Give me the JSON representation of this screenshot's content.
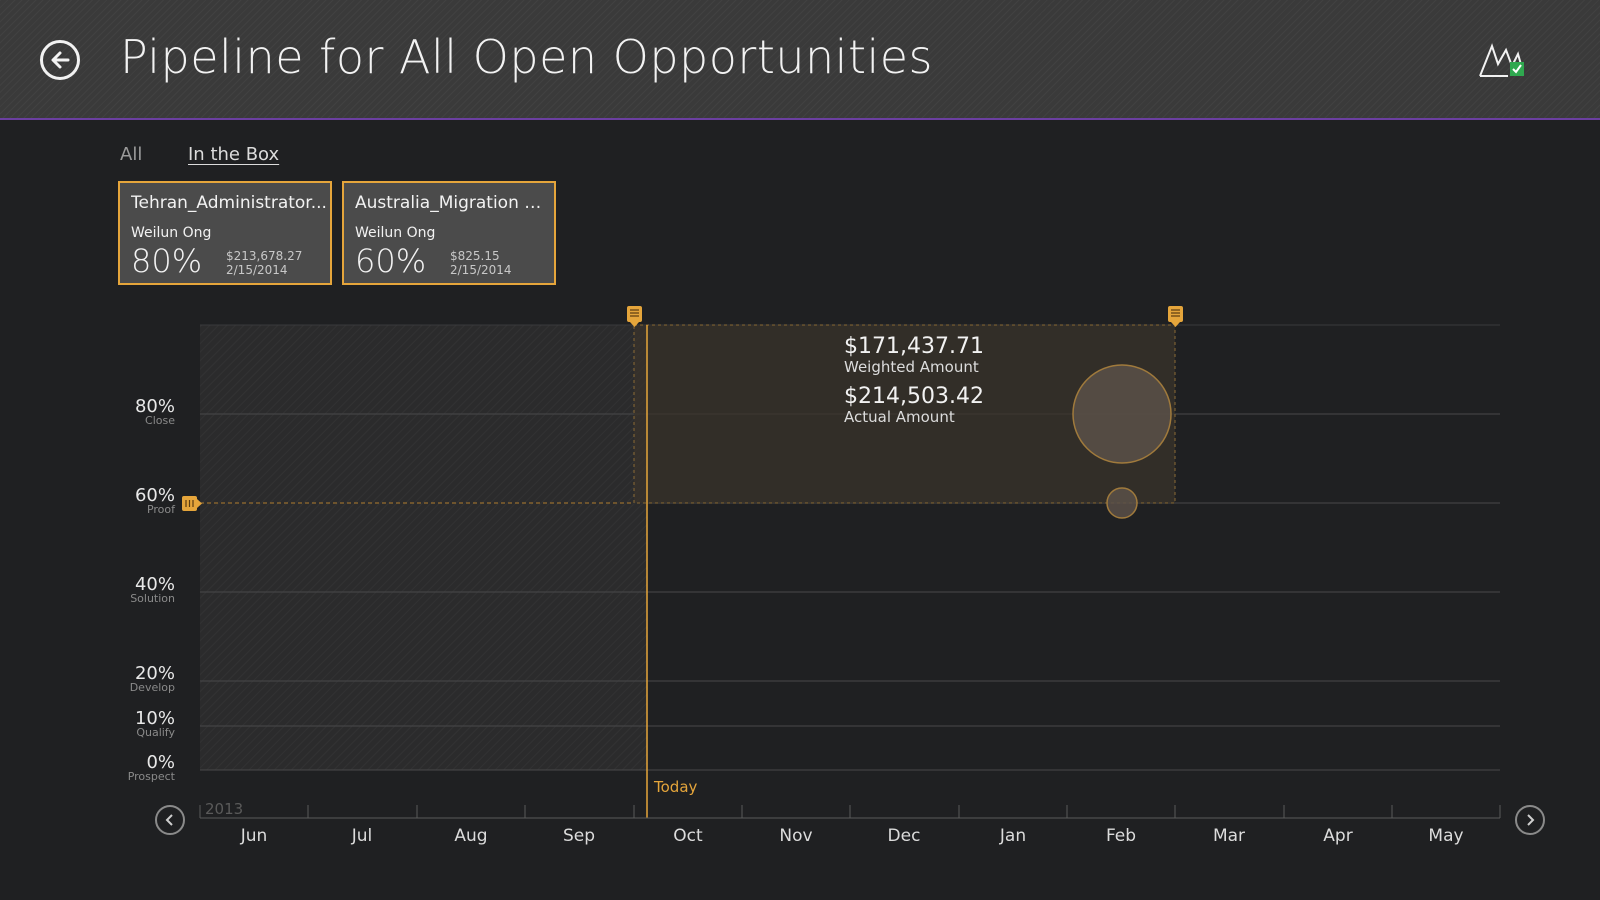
{
  "header": {
    "title": "Pipeline for All Open Opportunities",
    "back_icon": "back-arrow-icon",
    "logo_icon": "sales-app-logo-icon"
  },
  "filters": {
    "all": "All",
    "in_the_box": "In the Box",
    "selected": "In the Box"
  },
  "cards": [
    {
      "name": "Tehran_Administrator...",
      "owner": "Weilun Ong",
      "probability": "80%",
      "amount": "$213,678.27",
      "date": "2/15/2014"
    },
    {
      "name": "Australia_Migration on...",
      "owner": "Weilun Ong",
      "probability": "60%",
      "amount": "$825.15",
      "date": "2/15/2014"
    }
  ],
  "chart": {
    "y_levels": [
      {
        "pct": "80%",
        "stage": "Close"
      },
      {
        "pct": "60%",
        "stage": "Proof"
      },
      {
        "pct": "40%",
        "stage": "Solution"
      },
      {
        "pct": "20%",
        "stage": "Develop"
      },
      {
        "pct": "10%",
        "stage": "Qualify"
      },
      {
        "pct": "0%",
        "stage": "Prospect"
      }
    ],
    "year": "2013",
    "months": [
      "Jun",
      "Jul",
      "Aug",
      "Sep",
      "Oct",
      "Nov",
      "Dec",
      "Jan",
      "Feb",
      "Mar",
      "Apr",
      "May"
    ],
    "today_label": "Today",
    "summary": {
      "weighted_value": "$171,437.71",
      "weighted_label": "Weighted Amount",
      "actual_value": "$214,503.42",
      "actual_label": "Actual Amount"
    }
  },
  "colors": {
    "accent": "#e5a53b",
    "header_bg": "#3a3a3a",
    "header_border": "#6b3fa0",
    "background": "#1f2022"
  }
}
